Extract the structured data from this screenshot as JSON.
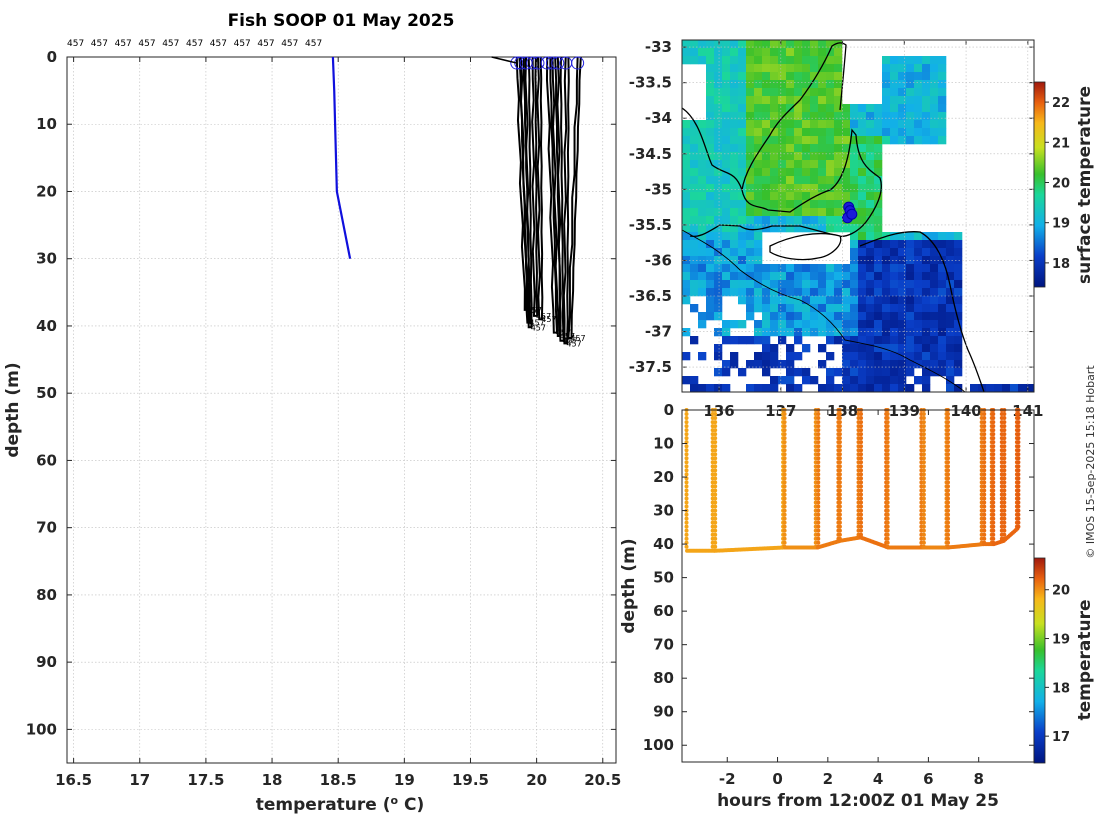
{
  "title": "Fish SOOP 01 May 2025",
  "copyright": "© IMOS 15-Sep-2025 15:18 Hobart",
  "colors": {
    "profile_line": "#1010dd",
    "cast_line": "#000000",
    "circle": "#2222dd",
    "land": "#ffffff",
    "coast": "#000000"
  },
  "chart_data": [
    {
      "type": "line",
      "name": "temperature-depth-profiles",
      "xlabel": "temperature (o C)",
      "ylabel": "depth (m)",
      "xlim": [
        16.45,
        20.6
      ],
      "ylim": [
        105,
        0
      ],
      "xticks": [
        "16.5",
        "17",
        "17.5",
        "18",
        "18.5",
        "19",
        "19.5",
        "20",
        "20.5"
      ],
      "yticks": [
        "0",
        "10",
        "20",
        "30",
        "40",
        "50",
        "60",
        "70",
        "80",
        "90",
        "100"
      ],
      "vessel_id_label": "457",
      "vessel_id_repeat": 11,
      "grid": true,
      "series": [
        {
          "name": "blue profile",
          "temperature": [
            18.46,
            18.47,
            18.49,
            18.59
          ],
          "depth": [
            0,
            5,
            20,
            30
          ]
        }
      ],
      "black_casts": [
        {
          "t_surface": 19.85,
          "t_bottom": 19.91,
          "max_depth": 37.6
        },
        {
          "t_surface": 19.88,
          "t_bottom": 19.93,
          "max_depth": 39.5
        },
        {
          "t_surface": 19.92,
          "t_bottom": 19.94,
          "max_depth": 40.2
        },
        {
          "t_surface": 19.97,
          "t_bottom": 19.98,
          "max_depth": 38.5
        },
        {
          "t_surface": 20.01,
          "t_bottom": 20.02,
          "max_depth": 39.0
        },
        {
          "t_surface": 20.08,
          "t_bottom": 20.13,
          "max_depth": 41.0
        },
        {
          "t_surface": 20.12,
          "t_bottom": 20.16,
          "max_depth": 41.5
        },
        {
          "t_surface": 20.16,
          "t_bottom": 20.18,
          "max_depth": 42.2
        },
        {
          "t_surface": 20.22,
          "t_bottom": 20.21,
          "max_depth": 42.6
        },
        {
          "t_surface": 20.31,
          "t_bottom": 20.24,
          "max_depth": 41.8
        }
      ]
    },
    {
      "type": "heatmap",
      "name": "surface-temperature-map",
      "xlabel": "",
      "ylabel": "",
      "xlim": [
        135.4,
        141.1
      ],
      "ylim": [
        -37.85,
        -32.9
      ],
      "xticks": [
        "136",
        "137",
        "138",
        "139",
        "140",
        "141"
      ],
      "yticks": [
        "-33",
        "-33.5",
        "-34",
        "-34.5",
        "-35",
        "-35.5",
        "-36",
        "-36.5",
        "-37",
        "-37.5"
      ],
      "colorbar_label": "surface temperature",
      "colorbar_ticks": [
        "18",
        "19",
        "20",
        "21",
        "22"
      ],
      "colorbar_range": [
        17.4,
        22.5
      ],
      "vessel_positions": [
        {
          "lon": 138.1,
          "lat": -35.25
        },
        {
          "lon": 138.12,
          "lat": -35.3
        },
        {
          "lon": 138.08,
          "lat": -35.4
        },
        {
          "lon": 138.15,
          "lat": -35.35
        }
      ]
    },
    {
      "type": "scatter",
      "name": "depth-time-section",
      "xlabel": "hours from 12:00Z 01 May 25",
      "ylabel": "depth (m)",
      "xlim": [
        -3.8,
        10.2
      ],
      "ylim": [
        105,
        0
      ],
      "xticks": [
        "-2",
        "0",
        "2",
        "4",
        "6",
        "8"
      ],
      "yticks": [
        "0",
        "10",
        "20",
        "30",
        "40",
        "50",
        "60",
        "70",
        "80",
        "90",
        "100"
      ],
      "colorbar_label": "temperature",
      "colorbar_ticks": [
        "17",
        "18",
        "19",
        "20"
      ],
      "colorbar_range": [
        16.45,
        20.65
      ],
      "casts_hours": [
        -3.6,
        -2.5,
        0.3,
        1.6,
        2.5,
        3.3,
        4.4,
        5.8,
        6.8,
        8.2,
        8.6,
        9.0,
        9.6
      ],
      "cast_temps": [
        19.9,
        19.9,
        20.0,
        20.1,
        20.1,
        20.15,
        20.1,
        20.05,
        20.1,
        20.15,
        20.2,
        20.2,
        20.25
      ],
      "bottom_depths": [
        42,
        42,
        41,
        41,
        39,
        38,
        41,
        41,
        41,
        40,
        40,
        39,
        35
      ]
    }
  ]
}
